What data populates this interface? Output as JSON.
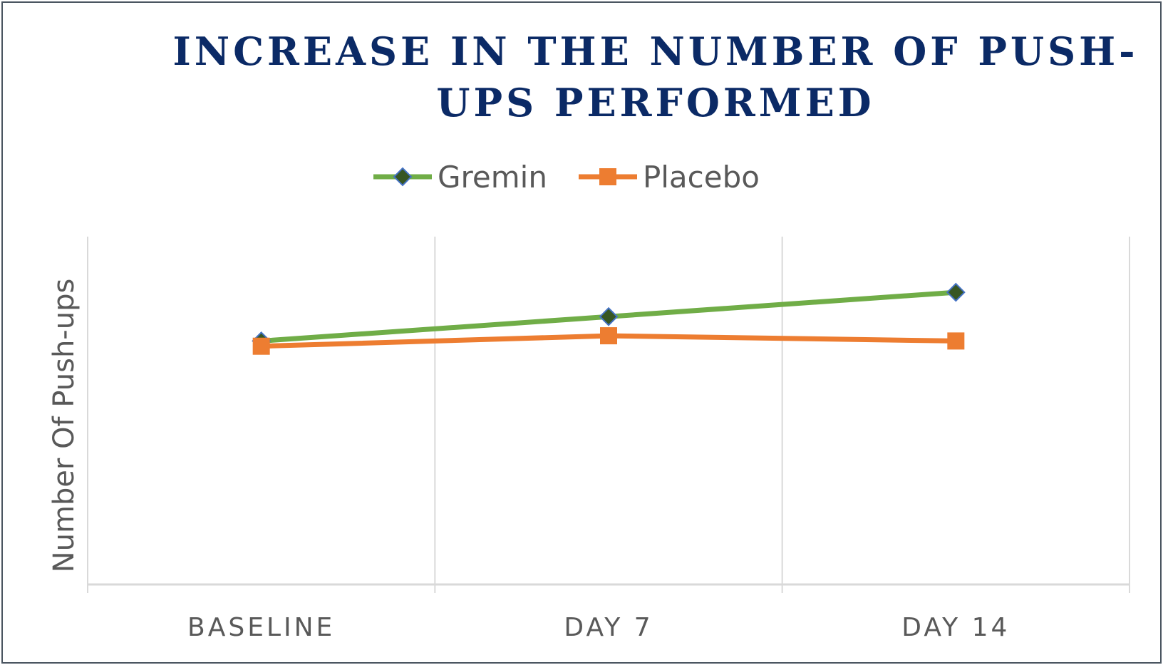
{
  "chart_data": {
    "type": "line",
    "title": "INCREASE IN THE NUMBER OF PUSH-UPS PERFORMED",
    "xlabel": "",
    "ylabel": "Number Of Push-ups",
    "categories": [
      "BASELINE",
      "DAY 7",
      "DAY 14"
    ],
    "series": [
      {
        "name": "Gremin",
        "values": [
          7.0,
          7.7,
          8.4
        ],
        "color": "#70ad47",
        "marker": "diamond",
        "marker_fill": "#375623",
        "marker_edge": "#4472c4"
      },
      {
        "name": "Placebo",
        "values": [
          6.85,
          7.15,
          7.0
        ],
        "color": "#ed7d31",
        "marker": "square"
      }
    ],
    "ylim": [
      0,
      10
    ],
    "grid": {
      "vertical": true,
      "horizontal": false
    },
    "legend": "top"
  }
}
